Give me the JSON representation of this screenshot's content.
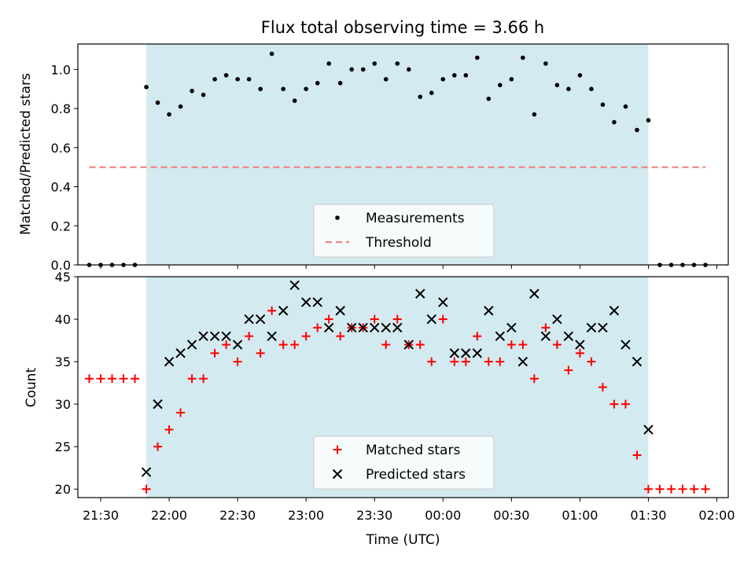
{
  "chart_data": [
    {
      "type": "scatter",
      "title": "Flux total observing time = 3.66 h",
      "xlabel": "",
      "ylabel": "Matched/Predicted stars",
      "xlim": [
        "21:20",
        "02:05"
      ],
      "ylim": [
        0,
        1.13
      ],
      "yticks": [
        "0.0",
        "0.2",
        "0.4",
        "0.6",
        "0.8",
        "1.0"
      ],
      "shaded_span": [
        "21:50",
        "01:30"
      ],
      "shaded_color": "#d3eaf0",
      "legend_position": "lower-center",
      "series": [
        {
          "name": "Measurements",
          "marker": "dot",
          "color": "#000000",
          "points": [
            [
              "21:25",
              0.0
            ],
            [
              "21:30",
              0.0
            ],
            [
              "21:35",
              0.0
            ],
            [
              "21:40",
              0.0
            ],
            [
              "21:45",
              0.0
            ],
            [
              "21:50",
              0.91
            ],
            [
              "21:55",
              0.83
            ],
            [
              "22:00",
              0.77
            ],
            [
              "22:05",
              0.81
            ],
            [
              "22:10",
              0.89
            ],
            [
              "22:15",
              0.87
            ],
            [
              "22:20",
              0.95
            ],
            [
              "22:25",
              0.97
            ],
            [
              "22:30",
              0.95
            ],
            [
              "22:35",
              0.95
            ],
            [
              "22:40",
              0.9
            ],
            [
              "22:45",
              1.08
            ],
            [
              "22:50",
              0.9
            ],
            [
              "22:55",
              0.84
            ],
            [
              "23:00",
              0.9
            ],
            [
              "23:05",
              0.93
            ],
            [
              "23:10",
              1.03
            ],
            [
              "23:15",
              0.93
            ],
            [
              "23:20",
              1.0
            ],
            [
              "23:25",
              1.0
            ],
            [
              "23:30",
              1.03
            ],
            [
              "23:35",
              0.95
            ],
            [
              "23:40",
              1.03
            ],
            [
              "23:45",
              1.0
            ],
            [
              "23:50",
              0.86
            ],
            [
              "23:55",
              0.88
            ],
            [
              "00:00",
              0.95
            ],
            [
              "00:05",
              0.97
            ],
            [
              "00:10",
              0.97
            ],
            [
              "00:15",
              1.06
            ],
            [
              "00:20",
              0.85
            ],
            [
              "00:25",
              0.92
            ],
            [
              "00:30",
              0.95
            ],
            [
              "00:35",
              1.06
            ],
            [
              "00:40",
              0.77
            ],
            [
              "00:45",
              1.03
            ],
            [
              "00:50",
              0.92
            ],
            [
              "00:55",
              0.9
            ],
            [
              "01:00",
              0.97
            ],
            [
              "01:05",
              0.9
            ],
            [
              "01:10",
              0.82
            ],
            [
              "01:15",
              0.73
            ],
            [
              "01:20",
              0.81
            ],
            [
              "01:25",
              0.69
            ],
            [
              "01:30",
              0.74
            ],
            [
              "01:35",
              0.0
            ],
            [
              "01:40",
              0.0
            ],
            [
              "01:45",
              0.0
            ],
            [
              "01:50",
              0.0
            ],
            [
              "01:55",
              0.0
            ]
          ]
        },
        {
          "name": "Threshold",
          "marker": "dashed-line",
          "color": "#f08080",
          "points": [
            [
              "21:25",
              0.5
            ],
            [
              "01:55",
              0.5
            ]
          ]
        }
      ]
    },
    {
      "type": "scatter",
      "title": "",
      "xlabel": "Time (UTC)",
      "ylabel": "Count",
      "xlim": [
        "21:20",
        "02:05"
      ],
      "ylim": [
        19,
        45
      ],
      "yticks": [
        "20",
        "25",
        "30",
        "35",
        "40",
        "45"
      ],
      "xticks": [
        "21:30",
        "22:00",
        "22:30",
        "23:00",
        "23:30",
        "00:00",
        "00:30",
        "01:00",
        "01:30",
        "02:00"
      ],
      "shaded_span": [
        "21:50",
        "01:30"
      ],
      "shaded_color": "#d3eaf0",
      "legend_position": "lower-center",
      "series": [
        {
          "name": "Matched stars",
          "marker": "plus",
          "color": "#ff0000",
          "points": [
            [
              "21:25",
              33
            ],
            [
              "21:30",
              33
            ],
            [
              "21:35",
              33
            ],
            [
              "21:40",
              33
            ],
            [
              "21:45",
              33
            ],
            [
              "21:50",
              20
            ],
            [
              "21:55",
              25
            ],
            [
              "22:00",
              27
            ],
            [
              "22:05",
              29
            ],
            [
              "22:10",
              33
            ],
            [
              "22:15",
              33
            ],
            [
              "22:20",
              36
            ],
            [
              "22:25",
              37
            ],
            [
              "22:30",
              35
            ],
            [
              "22:35",
              38
            ],
            [
              "22:40",
              36
            ],
            [
              "22:45",
              41
            ],
            [
              "22:50",
              37
            ],
            [
              "22:55",
              37
            ],
            [
              "23:00",
              38
            ],
            [
              "23:05",
              39
            ],
            [
              "23:10",
              40
            ],
            [
              "23:15",
              38
            ],
            [
              "23:20",
              39
            ],
            [
              "23:25",
              39
            ],
            [
              "23:30",
              40
            ],
            [
              "23:35",
              37
            ],
            [
              "23:40",
              40
            ],
            [
              "23:45",
              37
            ],
            [
              "23:50",
              37
            ],
            [
              "23:55",
              35
            ],
            [
              "00:00",
              40
            ],
            [
              "00:05",
              35
            ],
            [
              "00:10",
              35
            ],
            [
              "00:15",
              38
            ],
            [
              "00:20",
              35
            ],
            [
              "00:25",
              35
            ],
            [
              "00:30",
              37
            ],
            [
              "00:35",
              37
            ],
            [
              "00:40",
              33
            ],
            [
              "00:45",
              39
            ],
            [
              "00:50",
              37
            ],
            [
              "00:55",
              34
            ],
            [
              "01:00",
              36
            ],
            [
              "01:05",
              35
            ],
            [
              "01:10",
              32
            ],
            [
              "01:15",
              30
            ],
            [
              "01:20",
              30
            ],
            [
              "01:25",
              24
            ],
            [
              "01:30",
              20
            ],
            [
              "01:35",
              20
            ],
            [
              "01:40",
              20
            ],
            [
              "01:45",
              20
            ],
            [
              "01:50",
              20
            ],
            [
              "01:55",
              20
            ]
          ]
        },
        {
          "name": "Predicted stars",
          "marker": "x",
          "color": "#000000",
          "points": [
            [
              "21:50",
              22
            ],
            [
              "21:55",
              30
            ],
            [
              "22:00",
              35
            ],
            [
              "22:05",
              36
            ],
            [
              "22:10",
              37
            ],
            [
              "22:15",
              38
            ],
            [
              "22:20",
              38
            ],
            [
              "22:25",
              38
            ],
            [
              "22:30",
              37
            ],
            [
              "22:35",
              40
            ],
            [
              "22:40",
              40
            ],
            [
              "22:45",
              38
            ],
            [
              "22:50",
              41
            ],
            [
              "22:55",
              44
            ],
            [
              "23:00",
              42
            ],
            [
              "23:05",
              42
            ],
            [
              "23:10",
              39
            ],
            [
              "23:15",
              41
            ],
            [
              "23:20",
              39
            ],
            [
              "23:25",
              39
            ],
            [
              "23:30",
              39
            ],
            [
              "23:35",
              39
            ],
            [
              "23:40",
              39
            ],
            [
              "23:45",
              37
            ],
            [
              "23:50",
              43
            ],
            [
              "23:55",
              40
            ],
            [
              "00:00",
              42
            ],
            [
              "00:05",
              36
            ],
            [
              "00:10",
              36
            ],
            [
              "00:15",
              36
            ],
            [
              "00:20",
              41
            ],
            [
              "00:25",
              38
            ],
            [
              "00:30",
              39
            ],
            [
              "00:35",
              35
            ],
            [
              "00:40",
              43
            ],
            [
              "00:45",
              38
            ],
            [
              "00:50",
              40
            ],
            [
              "00:55",
              38
            ],
            [
              "01:00",
              37
            ],
            [
              "01:05",
              39
            ],
            [
              "01:10",
              39
            ],
            [
              "01:15",
              41
            ],
            [
              "01:20",
              37
            ],
            [
              "01:25",
              35
            ],
            [
              "01:30",
              27
            ]
          ]
        }
      ]
    }
  ]
}
